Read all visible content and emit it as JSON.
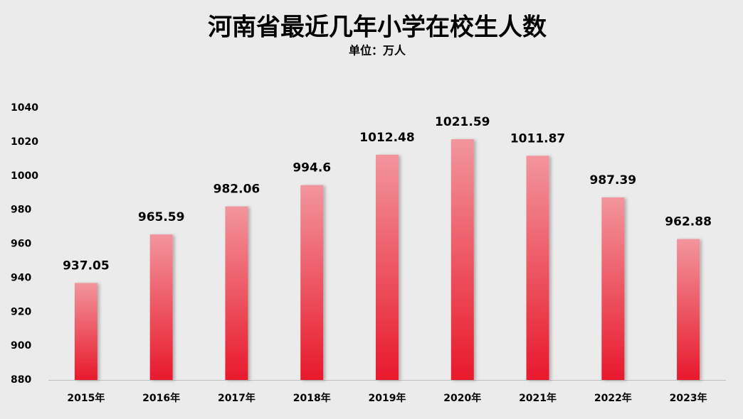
{
  "chart_data": {
    "type": "bar",
    "title": "河南省最近几年小学在校生人数",
    "subtitle": "单位：万人",
    "categories": [
      "2015年",
      "2016年",
      "2017年",
      "2018年",
      "2019年",
      "2020年",
      "2021年",
      "2022年",
      "2023年"
    ],
    "values": [
      937.05,
      965.59,
      982.06,
      994.6,
      1012.48,
      1021.59,
      1011.87,
      987.39,
      962.88
    ],
    "color": "#e8192c",
    "ylim": [
      880,
      1040
    ],
    "yticks": [
      880,
      900,
      920,
      940,
      960,
      980,
      1000,
      1020,
      1040
    ],
    "grid": false
  }
}
